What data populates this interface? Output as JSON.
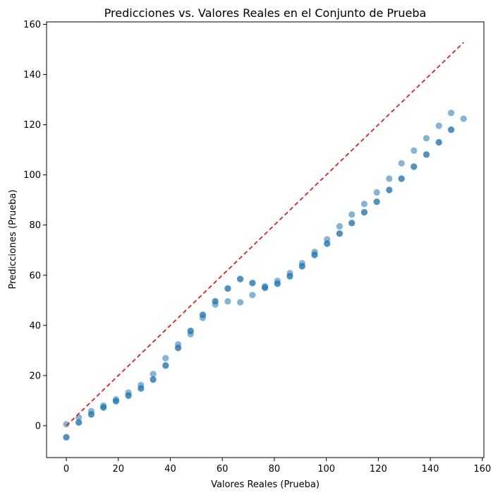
{
  "chart_data": {
    "type": "scatter",
    "title": "Predicciones vs. Valores Reales en el Conjunto de Prueba",
    "xlabel": "Valores Reales (Prueba)",
    "ylabel": "Predicciones (Prueba)",
    "xlim": [
      -7.6,
      160.6
    ],
    "ylim": [
      -12.7,
      161.0
    ],
    "xticks": [
      0,
      20,
      40,
      60,
      80,
      100,
      120,
      140,
      160
    ],
    "yticks": [
      0,
      20,
      40,
      60,
      80,
      100,
      120,
      140,
      160
    ],
    "grid": false,
    "legend": "none",
    "marker_color": "#1f77b4",
    "reference_line": {
      "from": [
        0,
        0
      ],
      "to": [
        152.8,
        152.8
      ],
      "color": "#ff0000",
      "style": "dashed"
    },
    "points": [
      [
        0.0,
        0.6
      ],
      [
        0.0,
        -4.6
      ],
      [
        0.0,
        -4.6
      ],
      [
        4.8,
        3.3
      ],
      [
        4.8,
        1.3
      ],
      [
        4.8,
        1.3
      ],
      [
        9.6,
        5.8
      ],
      [
        9.6,
        4.5
      ],
      [
        9.6,
        4.5
      ],
      [
        14.3,
        8.0
      ],
      [
        14.3,
        7.3
      ],
      [
        14.3,
        7.3
      ],
      [
        19.1,
        10.5
      ],
      [
        19.1,
        9.8
      ],
      [
        19.1,
        9.8
      ],
      [
        23.9,
        13.2
      ],
      [
        23.9,
        12.0
      ],
      [
        23.9,
        12.0
      ],
      [
        28.7,
        16.2
      ],
      [
        28.7,
        14.9
      ],
      [
        28.7,
        14.9
      ],
      [
        33.4,
        20.6
      ],
      [
        33.4,
        18.4
      ],
      [
        33.4,
        18.4
      ],
      [
        38.2,
        26.9
      ],
      [
        38.2,
        24.0
      ],
      [
        38.2,
        24.0
      ],
      [
        43.0,
        32.4
      ],
      [
        43.0,
        31.0
      ],
      [
        43.0,
        31.0
      ],
      [
        47.8,
        36.5
      ],
      [
        47.8,
        37.8
      ],
      [
        47.8,
        37.8
      ],
      [
        52.5,
        43.0
      ],
      [
        52.5,
        44.2
      ],
      [
        52.5,
        44.2
      ],
      [
        57.3,
        48.3
      ],
      [
        57.3,
        49.6
      ],
      [
        57.3,
        49.6
      ],
      [
        62.1,
        49.6
      ],
      [
        62.1,
        54.7
      ],
      [
        62.1,
        54.7
      ],
      [
        66.9,
        49.2
      ],
      [
        66.9,
        58.5
      ],
      [
        66.9,
        58.5
      ],
      [
        71.6,
        52.1
      ],
      [
        71.6,
        56.9
      ],
      [
        71.6,
        56.9
      ],
      [
        76.4,
        55.6
      ],
      [
        76.4,
        55.0
      ],
      [
        76.4,
        55.0
      ],
      [
        81.2,
        57.7
      ],
      [
        81.2,
        56.6
      ],
      [
        81.2,
        56.6
      ],
      [
        86.0,
        60.8
      ],
      [
        86.0,
        59.6
      ],
      [
        86.0,
        59.6
      ],
      [
        90.7,
        64.8
      ],
      [
        90.7,
        63.6
      ],
      [
        90.7,
        63.6
      ],
      [
        95.5,
        69.3
      ],
      [
        95.5,
        68.1
      ],
      [
        95.5,
        68.1
      ],
      [
        100.3,
        74.3
      ],
      [
        100.3,
        72.6
      ],
      [
        100.3,
        72.6
      ],
      [
        105.1,
        79.5
      ],
      [
        105.1,
        76.6
      ],
      [
        105.1,
        76.6
      ],
      [
        109.8,
        84.2
      ],
      [
        109.8,
        80.8
      ],
      [
        109.8,
        80.8
      ],
      [
        114.6,
        88.4
      ],
      [
        114.6,
        85.1
      ],
      [
        114.6,
        85.1
      ],
      [
        119.4,
        93.0
      ],
      [
        119.4,
        89.3
      ],
      [
        119.4,
        89.3
      ],
      [
        124.2,
        98.5
      ],
      [
        124.2,
        94.0
      ],
      [
        124.2,
        94.0
      ],
      [
        128.9,
        104.6
      ],
      [
        128.9,
        98.5
      ],
      [
        128.9,
        98.5
      ],
      [
        133.7,
        109.7
      ],
      [
        133.7,
        103.3
      ],
      [
        133.7,
        103.3
      ],
      [
        138.5,
        114.6
      ],
      [
        138.5,
        108.1
      ],
      [
        138.5,
        108.1
      ],
      [
        143.3,
        119.6
      ],
      [
        143.3,
        113.0
      ],
      [
        143.3,
        113.0
      ],
      [
        148.0,
        124.7
      ],
      [
        148.0,
        118.0
      ],
      [
        148.0,
        118.0
      ],
      [
        152.8,
        122.4
      ]
    ]
  }
}
